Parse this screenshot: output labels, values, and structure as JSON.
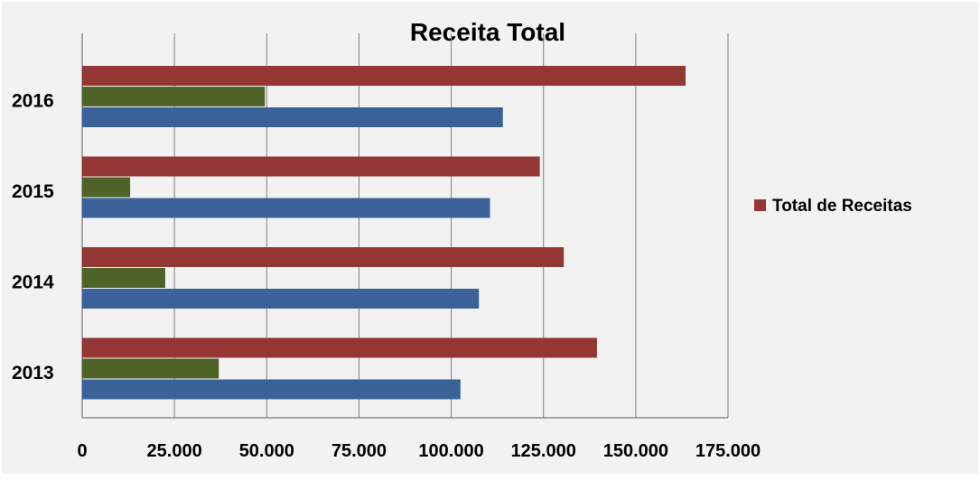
{
  "chart_data": {
    "type": "bar",
    "orientation": "horizontal",
    "title": "Receita Total",
    "categories": [
      "2013",
      "2014",
      "2015",
      "2016"
    ],
    "series": [
      {
        "name": "",
        "color": "#3A6198",
        "values": [
          102500,
          107500,
          110500,
          114000
        ]
      },
      {
        "name": "",
        "color": "#4F6228",
        "values": [
          37000,
          22500,
          13000,
          49500
        ]
      },
      {
        "name": "Total de Receitas",
        "color": "#943634",
        "values": [
          139500,
          130500,
          124000,
          163500
        ]
      }
    ],
    "xticks": [
      "0",
      "25.000",
      "50.000",
      "75.000",
      "100.000",
      "125.000",
      "150.000",
      "175.000"
    ],
    "xlim": [
      0,
      175000
    ],
    "grid": true,
    "legend": {
      "position": "right",
      "entries": [
        "Total de Receitas"
      ]
    },
    "colors": {
      "background": "#F2F2F2",
      "grid": "#7F7F7F"
    }
  }
}
